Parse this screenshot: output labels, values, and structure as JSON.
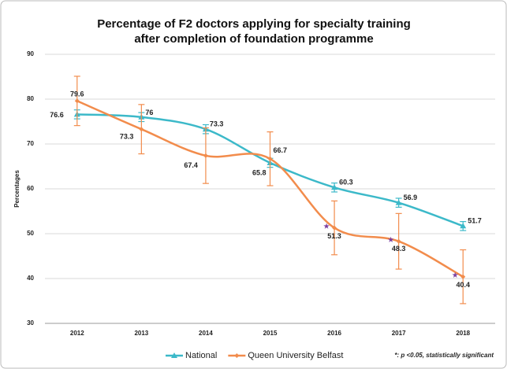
{
  "chart_data": {
    "type": "line",
    "title": [
      "Percentage of F2 doctors applying for specialty training",
      "after completion of foundation programme"
    ],
    "y_label": "Percentages",
    "categories": [
      "2012",
      "2013",
      "2014",
      "2015",
      "2016",
      "2017",
      "2018"
    ],
    "ylim": [
      30,
      90
    ],
    "yticks": [
      30,
      40,
      50,
      60,
      70,
      80,
      90
    ],
    "grid": true,
    "series": [
      {
        "name": "National",
        "color": "#3cb9c9",
        "label_color": "#2b8fa3",
        "marker": "triangle",
        "values": [
          76.6,
          76,
          73.3,
          65.8,
          60.3,
          56.9,
          51.7
        ],
        "errors": [
          1,
          1,
          1,
          1,
          1,
          1,
          1
        ]
      },
      {
        "name": "Queen University Belfast",
        "color": "#f28c4c",
        "label_color": "#a0623a",
        "marker": "diamond",
        "values": [
          79.6,
          73.3,
          67.4,
          66.7,
          51.3,
          48.3,
          40.4
        ],
        "errors": [
          5.5,
          5.5,
          6.2,
          6,
          6,
          6.2,
          6
        ],
        "significant": [
          false,
          false,
          false,
          false,
          true,
          true,
          true
        ]
      }
    ],
    "annotation": "*: p <0.05, statistically significant",
    "annotation_color": "#7a3fa0"
  }
}
